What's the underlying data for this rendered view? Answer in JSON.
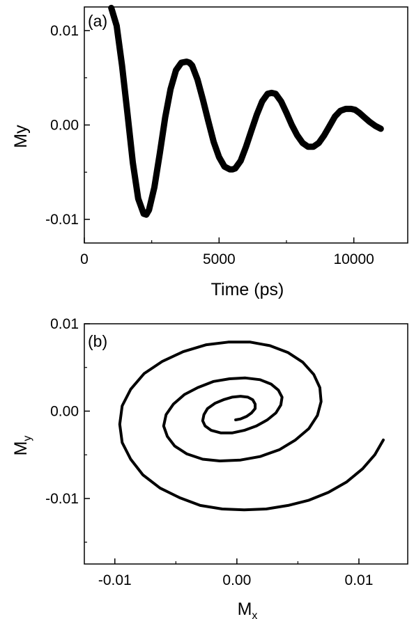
{
  "chart_data": [
    {
      "type": "line",
      "panel_label": "(a)",
      "xlabel": "Time (ps)",
      "ylabel": "My",
      "xlim": [
        0,
        12000
      ],
      "ylim": [
        -0.0125,
        0.0125
      ],
      "xticks": [
        {
          "value": 0,
          "label": "0"
        },
        {
          "value": 5000,
          "label": "5000"
        },
        {
          "value": 10000,
          "label": "10000"
        }
      ],
      "yticks": [
        {
          "value": 0.01,
          "label": "0.01"
        },
        {
          "value": 0.0,
          "label": "0.00"
        },
        {
          "value": -0.01,
          "label": "-0.01"
        }
      ],
      "grid": false,
      "series": [
        {
          "color": "#000000",
          "x": [
            1000,
            1200,
            1400,
            1600,
            1800,
            2000,
            2200,
            2300,
            2400,
            2600,
            2800,
            3000,
            3200,
            3400,
            3600,
            3800,
            3900,
            4000,
            4200,
            4400,
            4600,
            4800,
            5000,
            5200,
            5400,
            5500,
            5600,
            5800,
            6000,
            6200,
            6400,
            6600,
            6800,
            6950,
            7100,
            7300,
            7500,
            7700,
            7900,
            8100,
            8300,
            8500,
            8700,
            8900,
            9100,
            9300,
            9500,
            9700,
            9900,
            10050,
            10200,
            10400,
            10600,
            10800,
            11000
          ],
          "y": [
            0.0124,
            0.0105,
            0.0063,
            0.0012,
            -0.004,
            -0.0078,
            -0.0094,
            -0.0095,
            -0.009,
            -0.0066,
            -0.003,
            0.0008,
            0.0038,
            0.0058,
            0.0066,
            0.0067,
            0.0066,
            0.0063,
            0.0048,
            0.0027,
            0.0004,
            -0.0018,
            -0.0034,
            -0.0044,
            -0.0047,
            -0.0047,
            -0.0046,
            -0.0038,
            -0.0023,
            -0.0006,
            0.0011,
            0.0025,
            0.0033,
            0.0034,
            0.0033,
            0.0025,
            0.0013,
            0.0,
            -0.0011,
            -0.0019,
            -0.0023,
            -0.0023,
            -0.0019,
            -0.0011,
            -0.0001,
            0.0009,
            0.0015,
            0.0017,
            0.0017,
            0.0016,
            0.0013,
            0.0008,
            0.0003,
            -0.0001,
            -0.0004
          ]
        }
      ]
    },
    {
      "type": "line",
      "panel_label": "(b)",
      "xlabel": {
        "main": "M",
        "sub": "x"
      },
      "ylabel": {
        "main": "M",
        "sub": "y"
      },
      "xlim": [
        -0.0125,
        0.014
      ],
      "ylim": [
        -0.0175,
        0.01
      ],
      "xticks": [
        {
          "value": -0.01,
          "label": "-0.01"
        },
        {
          "value": 0.0,
          "label": "0.00"
        },
        {
          "value": 0.01,
          "label": "0.01"
        }
      ],
      "yticks": [
        {
          "value": 0.01,
          "label": "0.01"
        },
        {
          "value": 0.0,
          "label": "0.00"
        },
        {
          "value": -0.01,
          "label": "-0.01"
        }
      ],
      "grid": false,
      "series": [
        {
          "color": "#000000",
          "x": [
            0.012,
            0.0113,
            0.0103,
            0.009,
            0.0075,
            0.0059,
            0.0042,
            0.0024,
            0.0006,
            -0.0012,
            -0.003,
            -0.0047,
            -0.0063,
            -0.0077,
            -0.0087,
            -0.0094,
            -0.0096,
            -0.0094,
            -0.0087,
            -0.0076,
            -0.0061,
            -0.0044,
            -0.0025,
            -0.0007,
            0.0011,
            0.0027,
            0.0042,
            0.0054,
            0.0063,
            0.0068,
            0.0069,
            0.0066,
            0.0059,
            0.0048,
            0.0035,
            0.0019,
            0.0003,
            -0.0014,
            -0.0028,
            -0.0041,
            -0.0051,
            -0.0057,
            -0.006,
            -0.0058,
            -0.0052,
            -0.0043,
            -0.0032,
            -0.0019,
            -0.0006,
            0.0007,
            0.0019,
            0.0028,
            0.0034,
            0.0037,
            0.0036,
            0.0032,
            0.0025,
            0.0016,
            0.0006,
            -0.0004,
            -0.0013,
            -0.0021,
            -0.0026,
            -0.0028,
            -0.0027,
            -0.0024,
            -0.0018,
            -0.0011,
            -0.0004,
            0.0003,
            0.0009,
            0.0013,
            0.0015,
            0.0015,
            0.0012,
            0.0008,
            0.0003,
            -0.0001
          ],
          "y": [
            -0.0033,
            -0.005,
            -0.0066,
            -0.0081,
            -0.0093,
            -0.0102,
            -0.0108,
            -0.0112,
            -0.0113,
            -0.0112,
            -0.0108,
            -0.0099,
            -0.0088,
            -0.0073,
            -0.0055,
            -0.0036,
            -0.0015,
            0.0006,
            0.0025,
            0.0043,
            0.0057,
            0.0068,
            0.0076,
            0.0079,
            0.0079,
            0.0075,
            0.0067,
            0.0056,
            0.0042,
            0.0027,
            0.0011,
            -0.0005,
            -0.002,
            -0.0033,
            -0.0044,
            -0.0052,
            -0.0056,
            -0.0057,
            -0.0055,
            -0.0049,
            -0.004,
            -0.0029,
            -0.0017,
            -0.0004,
            0.0008,
            0.0019,
            0.0027,
            0.0034,
            0.0037,
            0.0038,
            0.0036,
            0.0031,
            0.0024,
            0.0016,
            0.0007,
            -0.0002,
            -0.001,
            -0.0017,
            -0.0022,
            -0.0025,
            -0.0025,
            -0.0022,
            -0.0017,
            -0.0011,
            -0.0004,
            0.0003,
            0.0009,
            0.0013,
            0.0016,
            0.0017,
            0.0016,
            0.0013,
            0.0008,
            0.0003,
            -0.0002,
            -0.0006,
            -0.0009,
            -0.001
          ]
        }
      ]
    }
  ]
}
